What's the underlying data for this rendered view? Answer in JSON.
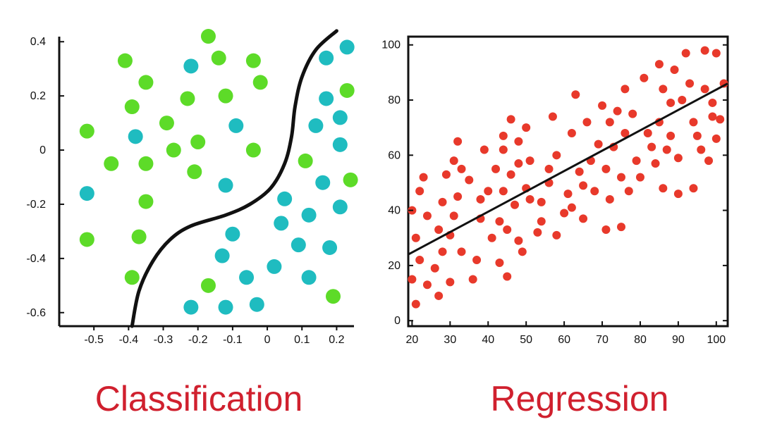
{
  "colors": {
    "class_a": "#5ddb28",
    "class_b": "#1fbcc0",
    "regression_points": "#e8392b",
    "axis": "#111111",
    "caption": "#d0202e"
  },
  "chart_data": [
    {
      "type": "scatter",
      "caption": "Classification",
      "title": "",
      "xlabel": "",
      "ylabel": "",
      "xlim": [
        -0.6,
        0.25
      ],
      "ylim": [
        -0.65,
        0.45
      ],
      "xticks": [
        -0.5,
        -0.4,
        -0.3,
        -0.2,
        -0.1,
        0,
        0.1,
        0.2
      ],
      "xtick_labels": [
        "-0.5",
        "-0.4",
        "-0.3",
        "-0.2",
        "-0.1",
        "0",
        "0.1",
        "0.2"
      ],
      "yticks": [
        0.4,
        0.2,
        0,
        -0.2,
        -0.4,
        -0.6
      ],
      "ytick_labels": [
        "0.4",
        "0.2",
        "0",
        "-0.2",
        "-0.4",
        "-0.6"
      ],
      "grid": false,
      "series": [
        {
          "color": "#5ddb28",
          "points": [
            [
              -0.17,
              0.42
            ],
            [
              -0.41,
              0.33
            ],
            [
              -0.14,
              0.34
            ],
            [
              -0.04,
              0.33
            ],
            [
              -0.02,
              0.25
            ],
            [
              -0.35,
              0.25
            ],
            [
              -0.12,
              0.2
            ],
            [
              -0.23,
              0.19
            ],
            [
              -0.39,
              0.16
            ],
            [
              -0.29,
              0.1
            ],
            [
              -0.52,
              0.07
            ],
            [
              -0.2,
              0.03
            ],
            [
              -0.27,
              0.0
            ],
            [
              -0.04,
              0.0
            ],
            [
              -0.45,
              -0.05
            ],
            [
              -0.35,
              -0.05
            ],
            [
              -0.21,
              -0.08
            ],
            [
              0.11,
              -0.04
            ],
            [
              0.24,
              -0.11
            ],
            [
              -0.35,
              -0.19
            ],
            [
              -0.52,
              -0.33
            ],
            [
              -0.37,
              -0.32
            ],
            [
              -0.39,
              -0.47
            ],
            [
              -0.17,
              -0.5
            ],
            [
              0.19,
              -0.54
            ],
            [
              0.23,
              0.22
            ]
          ]
        },
        {
          "color": "#1fbcc0",
          "points": [
            [
              -0.22,
              0.31
            ],
            [
              0.17,
              0.34
            ],
            [
              0.23,
              0.38
            ],
            [
              0.17,
              0.19
            ],
            [
              0.21,
              0.12
            ],
            [
              -0.09,
              0.09
            ],
            [
              0.14,
              0.09
            ],
            [
              -0.38,
              0.05
            ],
            [
              0.21,
              0.02
            ],
            [
              -0.12,
              -0.13
            ],
            [
              0.16,
              -0.12
            ],
            [
              -0.52,
              -0.16
            ],
            [
              0.05,
              -0.18
            ],
            [
              0.21,
              -0.21
            ],
            [
              0.12,
              -0.24
            ],
            [
              -0.1,
              -0.31
            ],
            [
              0.04,
              -0.27
            ],
            [
              -0.13,
              -0.39
            ],
            [
              0.09,
              -0.35
            ],
            [
              0.18,
              -0.36
            ],
            [
              -0.06,
              -0.47
            ],
            [
              0.02,
              -0.43
            ],
            [
              0.12,
              -0.47
            ],
            [
              -0.22,
              -0.58
            ],
            [
              -0.12,
              -0.58
            ],
            [
              -0.03,
              -0.57
            ]
          ]
        }
      ],
      "decision_boundary": [
        [
          -0.39,
          -0.65
        ],
        [
          -0.37,
          -0.52
        ],
        [
          -0.33,
          -0.41
        ],
        [
          -0.28,
          -0.33
        ],
        [
          -0.22,
          -0.28
        ],
        [
          -0.12,
          -0.24
        ],
        [
          -0.05,
          -0.2
        ],
        [
          0.01,
          -0.14
        ],
        [
          0.05,
          -0.05
        ],
        [
          0.07,
          0.05
        ],
        [
          0.08,
          0.16
        ],
        [
          0.1,
          0.27
        ],
        [
          0.14,
          0.37
        ],
        [
          0.2,
          0.44
        ]
      ]
    },
    {
      "type": "scatter",
      "caption": "Regression",
      "title": "",
      "xlabel": "",
      "ylabel": "",
      "xlim": [
        19,
        103
      ],
      "ylim": [
        -2,
        103
      ],
      "xticks": [
        20,
        30,
        40,
        50,
        60,
        70,
        80,
        90,
        100
      ],
      "xtick_labels": [
        "20",
        "30",
        "40",
        "50",
        "60",
        "70",
        "80",
        "90",
        "100"
      ],
      "yticks": [
        0,
        20,
        40,
        60,
        80,
        100
      ],
      "ytick_labels": [
        "0",
        "20",
        "40",
        "60",
        "80",
        "100"
      ],
      "grid": false,
      "trend_line": [
        [
          19,
          24
        ],
        [
          103,
          86
        ]
      ],
      "points": [
        [
          20,
          40
        ],
        [
          21,
          30
        ],
        [
          20,
          15
        ],
        [
          21,
          6
        ],
        [
          22,
          47
        ],
        [
          23,
          52
        ],
        [
          22,
          22
        ],
        [
          24,
          38
        ],
        [
          24,
          13
        ],
        [
          27,
          33
        ],
        [
          26,
          19
        ],
        [
          27,
          9
        ],
        [
          28,
          43
        ],
        [
          29,
          53
        ],
        [
          28,
          25
        ],
        [
          30,
          31
        ],
        [
          30,
          14
        ],
        [
          31,
          58
        ],
        [
          32,
          65
        ],
        [
          32,
          45
        ],
        [
          31,
          38
        ],
        [
          33,
          25
        ],
        [
          33,
          55
        ],
        [
          35,
          51
        ],
        [
          36,
          15
        ],
        [
          37,
          22
        ],
        [
          38,
          37
        ],
        [
          38,
          44
        ],
        [
          39,
          62
        ],
        [
          40,
          47
        ],
        [
          41,
          30
        ],
        [
          42,
          55
        ],
        [
          43,
          21
        ],
        [
          43,
          36
        ],
        [
          44,
          62
        ],
        [
          44,
          67
        ],
        [
          44,
          47
        ],
        [
          45,
          16
        ],
        [
          45,
          33
        ],
        [
          46,
          73
        ],
        [
          46,
          53
        ],
        [
          47,
          42
        ],
        [
          48,
          29
        ],
        [
          48,
          65
        ],
        [
          48,
          57
        ],
        [
          49,
          25
        ],
        [
          50,
          70
        ],
        [
          50,
          48
        ],
        [
          51,
          58
        ],
        [
          51,
          44
        ],
        [
          53,
          32
        ],
        [
          54,
          36
        ],
        [
          54,
          43
        ],
        [
          56,
          55
        ],
        [
          56,
          50
        ],
        [
          57,
          74
        ],
        [
          58,
          31
        ],
        [
          58,
          60
        ],
        [
          60,
          39
        ],
        [
          61,
          46
        ],
        [
          62,
          68
        ],
        [
          62,
          41
        ],
        [
          63,
          82
        ],
        [
          64,
          54
        ],
        [
          65,
          37
        ],
        [
          65,
          49
        ],
        [
          66,
          72
        ],
        [
          67,
          58
        ],
        [
          68,
          47
        ],
        [
          69,
          64
        ],
        [
          70,
          78
        ],
        [
          71,
          33
        ],
        [
          71,
          55
        ],
        [
          72,
          44
        ],
        [
          72,
          72
        ],
        [
          73,
          63
        ],
        [
          74,
          76
        ],
        [
          75,
          34
        ],
        [
          75,
          52
        ],
        [
          76,
          68
        ],
        [
          76,
          84
        ],
        [
          77,
          47
        ],
        [
          78,
          75
        ],
        [
          79,
          58
        ],
        [
          80,
          52
        ],
        [
          81,
          88
        ],
        [
          82,
          68
        ],
        [
          83,
          63
        ],
        [
          84,
          57
        ],
        [
          85,
          72
        ],
        [
          85,
          93
        ],
        [
          86,
          84
        ],
        [
          86,
          48
        ],
        [
          87,
          62
        ],
        [
          88,
          79
        ],
        [
          88,
          67
        ],
        [
          89,
          91
        ],
        [
          90,
          59
        ],
        [
          90,
          46
        ],
        [
          91,
          80
        ],
        [
          92,
          97
        ],
        [
          93,
          86
        ],
        [
          94,
          72
        ],
        [
          94,
          48
        ],
        [
          95,
          67
        ],
        [
          96,
          62
        ],
        [
          97,
          98
        ],
        [
          97,
          84
        ],
        [
          98,
          58
        ],
        [
          99,
          79
        ],
        [
          99,
          74
        ],
        [
          100,
          97
        ],
        [
          100,
          66
        ],
        [
          101,
          73
        ],
        [
          102,
          86
        ]
      ]
    }
  ]
}
